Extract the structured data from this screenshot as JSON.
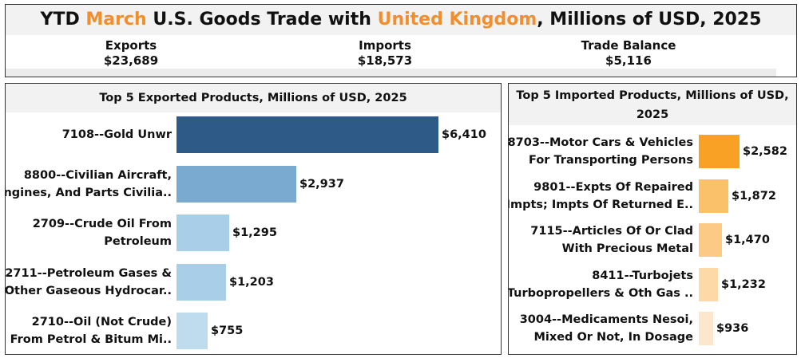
{
  "title": {
    "prefix": "YTD",
    "month": "March",
    "middle": "U.S. Goods Trade with",
    "country": "United Kingdom",
    "suffix": ", Millions of USD, 2025"
  },
  "kpis": [
    {
      "label": "Exports",
      "value": "$23,689"
    },
    {
      "label": "Imports",
      "value": "$18,573"
    },
    {
      "label": "Trade Balance",
      "value": "$5,116"
    }
  ],
  "colors": {
    "highlight": "#f28e2b",
    "export_bars": [
      "#2e5a87",
      "#7aaad0",
      "#a9cfe8",
      "#a9cfe8",
      "#bfdcee"
    ],
    "import_bars": [
      "#f8a124",
      "#fbc06a",
      "#fdca86",
      "#fdd9a8",
      "#fde7cc"
    ]
  },
  "chart_data": [
    {
      "type": "bar",
      "orientation": "horizontal",
      "title": "Top 5 Exported Products, Millions of USD, 2025",
      "categories": [
        [
          "7108--Gold  Unwr"
        ],
        [
          "8800--Civilian Aircraft,",
          "Engines, And Parts Civilia.."
        ],
        [
          "2709--Crude Oil From",
          "Petroleum"
        ],
        [
          "2711--Petroleum Gases &",
          "Other Gaseous Hydrocar.."
        ],
        [
          "2710--Oil (Not Crude)",
          "From Petrol & Bitum Mi.."
        ]
      ],
      "values": [
        6410,
        2937,
        1295,
        1203,
        755
      ],
      "value_labels": [
        "$6,410",
        "$2,937",
        "$1,295",
        "$1,203",
        "$755"
      ]
    },
    {
      "type": "bar",
      "orientation": "horizontal",
      "title": "Top 5 Imported Products, Millions of USD, 2025",
      "categories": [
        [
          "8703--Motor Cars & Vehicles",
          "For Transporting Persons"
        ],
        [
          "9801--Expts Of Repaired",
          "Impts; Impts Of Returned E.."
        ],
        [
          "7115--Articles Of Or Clad",
          "With Precious Metal"
        ],
        [
          "8411--Turbojets",
          "Turbopropellers & Oth Gas .."
        ],
        [
          "3004--Medicaments Nesoi,",
          "Mixed Or Not, In Dosage"
        ]
      ],
      "values": [
        2582,
        1872,
        1470,
        1232,
        936
      ],
      "value_labels": [
        "$2,582",
        "$1,872",
        "$1,470",
        "$1,232",
        "$936"
      ]
    }
  ]
}
